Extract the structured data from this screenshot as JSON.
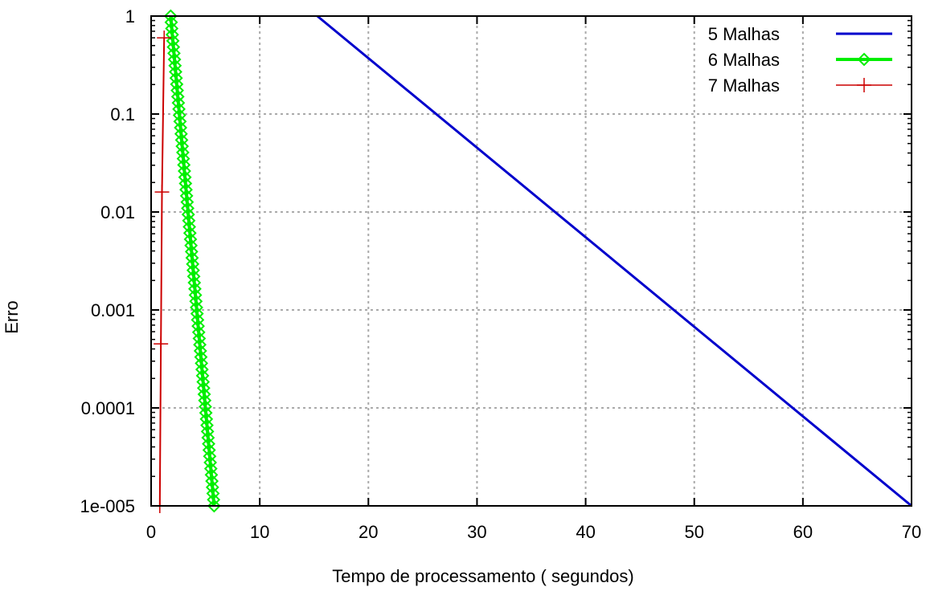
{
  "chart_data": {
    "type": "line",
    "xlabel": "Tempo de processamento ( segundos)",
    "ylabel": "Erro",
    "xlim": [
      0,
      70
    ],
    "ylim": [
      1e-05,
      1
    ],
    "yscale": "log",
    "grid": true,
    "legend_position": "top-right",
    "x_ticks": [
      "0",
      "10",
      "20",
      "30",
      "40",
      "50",
      "60",
      "70"
    ],
    "y_ticks": [
      "1e-005",
      "0.0001",
      "0.001",
      "0.01",
      "0.1",
      "1"
    ],
    "series": [
      {
        "name": "5  Malhas",
        "color": "#0000cc",
        "marker": "none",
        "x": [
          15.3,
          70.0
        ],
        "y": [
          1,
          1e-05
        ]
      },
      {
        "name": "6 Malhas",
        "color": "#00ee00",
        "marker": "diamond",
        "x": [
          1.8,
          5.8
        ],
        "y": [
          1,
          1e-05
        ],
        "points": 80
      },
      {
        "name": "7 Malhas",
        "color": "#cc0000",
        "marker": "plus",
        "x": [
          1.2,
          1.0,
          0.9,
          0.8
        ],
        "y": [
          0.6,
          0.016,
          0.00045,
          1e-05
        ]
      }
    ]
  }
}
